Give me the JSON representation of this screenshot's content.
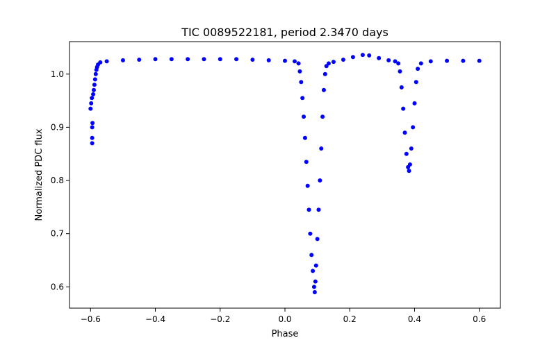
{
  "chart_data": {
    "type": "scatter",
    "title": "TIC 0089522181, period 2.3470 days",
    "xlabel": "Phase",
    "ylabel": "Normalized PDC flux",
    "xlim": [
      -0.665,
      0.665
    ],
    "ylim": [
      0.56,
      1.061
    ],
    "xticks": [
      -0.6,
      -0.4,
      -0.2,
      0.0,
      0.2,
      0.4,
      0.6
    ],
    "xtick_labels": [
      "−0.6",
      "−0.4",
      "−0.2",
      "0.0",
      "0.2",
      "0.4",
      "0.6"
    ],
    "yticks": [
      0.6,
      0.7,
      0.8,
      0.9,
      1.0
    ],
    "ytick_labels": [
      "0.6",
      "0.7",
      "0.8",
      "0.9",
      "1.0"
    ],
    "grid": false,
    "marker_color": "#0000ff",
    "series": [
      {
        "name": "light curve",
        "points": [
          [
            -0.6,
            0.935
          ],
          [
            -0.598,
            0.945
          ],
          [
            -0.596,
            0.955
          ],
          [
            -0.595,
            0.87
          ],
          [
            -0.595,
            0.88
          ],
          [
            -0.595,
            0.9
          ],
          [
            -0.594,
            0.908
          ],
          [
            -0.592,
            0.962
          ],
          [
            -0.59,
            0.97
          ],
          [
            -0.588,
            0.98
          ],
          [
            -0.586,
            0.99
          ],
          [
            -0.584,
            1.0
          ],
          [
            -0.582,
            1.008
          ],
          [
            -0.58,
            1.013
          ],
          [
            -0.577,
            1.018
          ],
          [
            -0.57,
            1.022
          ],
          [
            -0.55,
            1.024
          ],
          [
            -0.5,
            1.026
          ],
          [
            -0.45,
            1.027
          ],
          [
            -0.4,
            1.028
          ],
          [
            -0.35,
            1.028
          ],
          [
            -0.3,
            1.028
          ],
          [
            -0.25,
            1.028
          ],
          [
            -0.2,
            1.028
          ],
          [
            -0.15,
            1.028
          ],
          [
            -0.1,
            1.027
          ],
          [
            -0.05,
            1.026
          ],
          [
            0.0,
            1.025
          ],
          [
            0.03,
            1.024
          ],
          [
            0.042,
            1.02
          ],
          [
            0.046,
            1.005
          ],
          [
            0.05,
            0.985
          ],
          [
            0.054,
            0.955
          ],
          [
            0.058,
            0.92
          ],
          [
            0.062,
            0.88
          ],
          [
            0.066,
            0.835
          ],
          [
            0.07,
            0.79
          ],
          [
            0.074,
            0.745
          ],
          [
            0.078,
            0.7
          ],
          [
            0.082,
            0.66
          ],
          [
            0.086,
            0.63
          ],
          [
            0.09,
            0.6
          ],
          [
            0.092,
            0.59
          ],
          [
            0.094,
            0.61
          ],
          [
            0.096,
            0.64
          ],
          [
            0.1,
            0.69
          ],
          [
            0.104,
            0.745
          ],
          [
            0.108,
            0.8
          ],
          [
            0.112,
            0.86
          ],
          [
            0.116,
            0.92
          ],
          [
            0.12,
            0.97
          ],
          [
            0.124,
            1.0
          ],
          [
            0.128,
            1.015
          ],
          [
            0.135,
            1.02
          ],
          [
            0.15,
            1.023
          ],
          [
            0.18,
            1.027
          ],
          [
            0.21,
            1.032
          ],
          [
            0.24,
            1.036
          ],
          [
            0.26,
            1.035
          ],
          [
            0.29,
            1.03
          ],
          [
            0.32,
            1.026
          ],
          [
            0.34,
            1.024
          ],
          [
            0.35,
            1.02
          ],
          [
            0.355,
            1.005
          ],
          [
            0.36,
            0.975
          ],
          [
            0.365,
            0.935
          ],
          [
            0.37,
            0.89
          ],
          [
            0.375,
            0.85
          ],
          [
            0.38,
            0.825
          ],
          [
            0.383,
            0.818
          ],
          [
            0.386,
            0.83
          ],
          [
            0.39,
            0.86
          ],
          [
            0.395,
            0.9
          ],
          [
            0.4,
            0.945
          ],
          [
            0.405,
            0.985
          ],
          [
            0.41,
            1.01
          ],
          [
            0.42,
            1.02
          ],
          [
            0.45,
            1.024
          ],
          [
            0.5,
            1.025
          ],
          [
            0.55,
            1.025
          ],
          [
            0.6,
            1.025
          ]
        ]
      }
    ]
  }
}
